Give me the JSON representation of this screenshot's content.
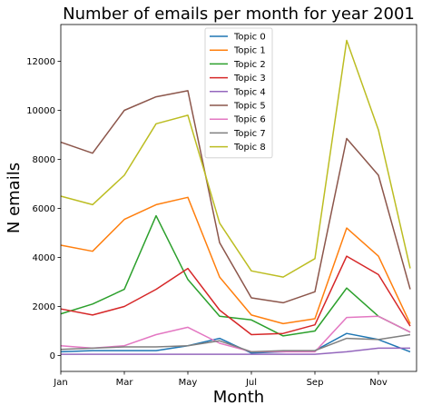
{
  "chart_data": {
    "type": "line",
    "title": "Number of emails per month for year 2001",
    "xlabel": "Month",
    "ylabel": "N emails",
    "x": [
      1,
      2,
      3,
      4,
      5,
      6,
      7,
      8,
      9,
      10,
      11,
      12
    ],
    "xticks": [
      {
        "value": 1,
        "label": "Jan"
      },
      {
        "value": 3,
        "label": "Mar"
      },
      {
        "value": 5,
        "label": "May"
      },
      {
        "value": 7,
        "label": "Jul"
      },
      {
        "value": 9,
        "label": "Sep"
      },
      {
        "value": 11,
        "label": "Nov"
      }
    ],
    "yticks": [
      0,
      2000,
      4000,
      6000,
      8000,
      10000,
      12000
    ],
    "xlim": [
      1,
      12.2
    ],
    "ylim": [
      -650,
      13500
    ],
    "grid": false,
    "legend_position": "top-center",
    "series": [
      {
        "name": "Topic 0",
        "color": "#1f77b4",
        "values": [
          150,
          200,
          200,
          200,
          400,
          700,
          100,
          150,
          200,
          900,
          650,
          150
        ]
      },
      {
        "name": "Topic 1",
        "color": "#ff7f0e",
        "values": [
          4500,
          4250,
          5550,
          6150,
          6450,
          3200,
          1650,
          1300,
          1500,
          5200,
          4050,
          1300
        ]
      },
      {
        "name": "Topic 2",
        "color": "#2ca02c",
        "values": [
          1700,
          2100,
          2700,
          5700,
          3100,
          1600,
          1450,
          800,
          1000,
          2750,
          1600,
          950
        ]
      },
      {
        "name": "Topic 3",
        "color": "#d62728",
        "values": [
          1900,
          1650,
          2000,
          2700,
          3550,
          1850,
          850,
          900,
          1250,
          4050,
          3300,
          1200
        ]
      },
      {
        "name": "Topic 4",
        "color": "#9467bd",
        "values": [
          50,
          50,
          50,
          50,
          50,
          50,
          50,
          50,
          50,
          150,
          300,
          300
        ]
      },
      {
        "name": "Topic 5",
        "color": "#8c564b",
        "values": [
          8700,
          8250,
          10000,
          10550,
          10800,
          4600,
          2350,
          2150,
          2600,
          8850,
          7350,
          2700
        ]
      },
      {
        "name": "Topic 6",
        "color": "#e377c2",
        "values": [
          400,
          300,
          400,
          850,
          1150,
          500,
          150,
          150,
          150,
          1550,
          1600,
          950
        ]
      },
      {
        "name": "Topic 7",
        "color": "#7f7f7f",
        "values": [
          250,
          300,
          350,
          350,
          400,
          600,
          150,
          200,
          200,
          700,
          650,
          850
        ]
      },
      {
        "name": "Topic 8",
        "color": "#bcbd22",
        "values": [
          6500,
          6150,
          7350,
          9450,
          9800,
          5400,
          3450,
          3200,
          3950,
          12850,
          9200,
          3550
        ]
      }
    ]
  }
}
